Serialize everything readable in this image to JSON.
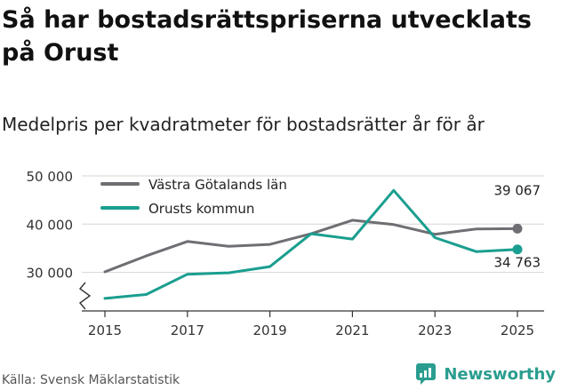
{
  "title": "Så har bostadsrättspriserna utvecklats på Orust",
  "subtitle": "Medelpris per kvadratmeter för bostadsrätter år för år",
  "source": "Källa: Svensk Mäklarstatistik",
  "brand": "Newsworthy",
  "colors": {
    "series_a": "#6e6e73",
    "series_b": "#1a9e8f",
    "grid": "#d6d6d6",
    "axis": "#333333"
  },
  "chart_data": {
    "type": "line",
    "title": "Medelpris per kvadratmeter för bostadsrätter år för år",
    "xlabel": "",
    "ylabel": "",
    "x": [
      2015,
      2016,
      2017,
      2018,
      2019,
      2020,
      2021,
      2022,
      2023,
      2024,
      2025
    ],
    "x_ticks": [
      "2015",
      "2017",
      "2019",
      "2021",
      "2023",
      "2025"
    ],
    "y_ticks": [
      "30 000",
      "40 000",
      "50 000"
    ],
    "ylim": [
      22000,
      50000
    ],
    "axis_break": true,
    "legend_position": "top-left",
    "series": [
      {
        "name": "Västra Götalands län",
        "color": "#6e6e73",
        "values": [
          30100,
          33400,
          36400,
          35400,
          35800,
          38000,
          40800,
          39900,
          37900,
          39000,
          39067
        ],
        "end_label": "39 067"
      },
      {
        "name": "Orusts kommun",
        "color": "#1a9e8f",
        "values": [
          24600,
          25400,
          29600,
          29900,
          31200,
          38000,
          36900,
          47000,
          37200,
          34300,
          34763
        ],
        "end_label": "34 763"
      }
    ]
  }
}
